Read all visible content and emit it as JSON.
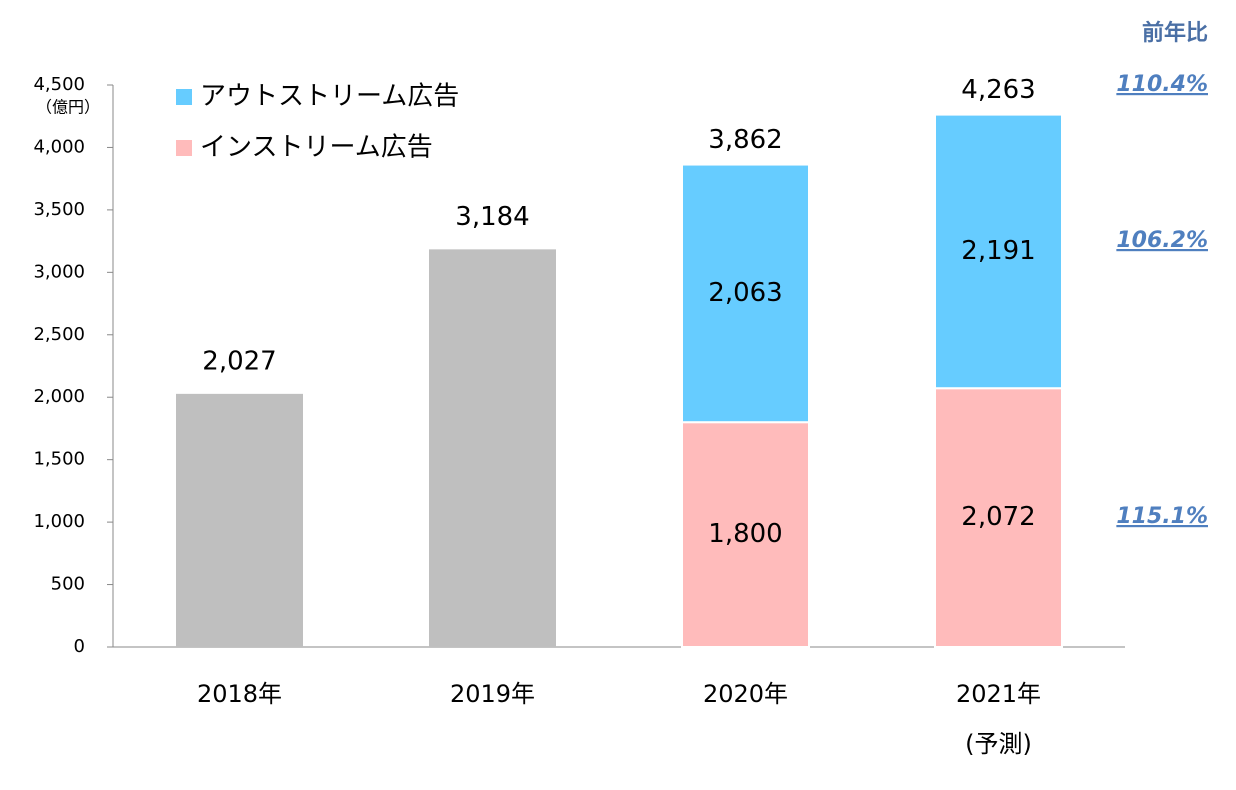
{
  "chart_data": {
    "type": "stacked_bar",
    "y_unit": "（億円）",
    "categories": [
      "2018年",
      "2019年",
      "2020年",
      "2021年"
    ],
    "category_notes": [
      null,
      null,
      null,
      "(予測)"
    ],
    "ylim": [
      0,
      4500
    ],
    "yticks": [
      0,
      {
        "value": 500,
        "label": "500"
      },
      {
        "value": 1000,
        "label": "1,000"
      },
      {
        "value": 1500,
        "label": "1,500"
      },
      {
        "value": 2000,
        "label": "2,000"
      },
      {
        "value": 2500,
        "label": "2,500"
      },
      {
        "value": 3000,
        "label": "3,000"
      },
      {
        "value": 3500,
        "label": "3,500"
      },
      {
        "value": 4000,
        "label": "4,000"
      },
      {
        "value": 4500,
        "label": "4,500"
      }
    ],
    "total_bars": {
      "color": "#bfbfbf",
      "values": [
        2027,
        3184,
        null,
        null
      ],
      "value_labels": [
        "2,027",
        "3,184",
        null,
        null
      ]
    },
    "series": [
      {
        "name": "インストリーム広告",
        "color": "#ffbbbb",
        "values": [
          null,
          null,
          1800,
          2072
        ],
        "value_labels": [
          null,
          null,
          "1,800",
          "2,072"
        ]
      },
      {
        "name": "アウトストリーム広告",
        "color": "#66ccff",
        "values": [
          null,
          null,
          2063,
          2191
        ],
        "value_labels": [
          null,
          null,
          "2,063",
          "2,191"
        ]
      }
    ],
    "totals": [
      null,
      null,
      3862,
      4263
    ],
    "total_labels": [
      null,
      null,
      "3,862",
      "4,263"
    ],
    "yoy": {
      "title": "前年比",
      "values": [
        110.4,
        106.2,
        115.1
      ],
      "value_labels": [
        "110.4%",
        "106.2%",
        "115.1%"
      ]
    }
  }
}
